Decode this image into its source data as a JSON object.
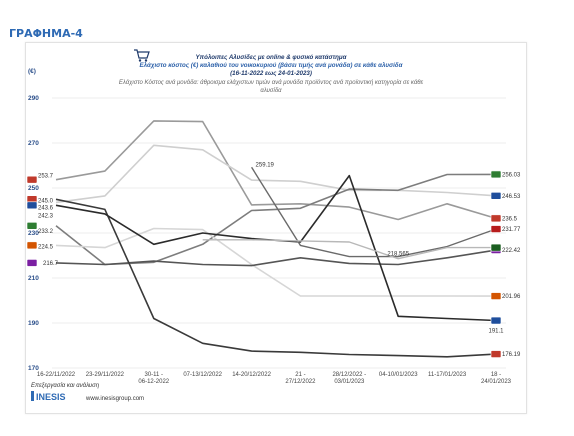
{
  "heading": "ΓΡΑΦΗΜΑ-4",
  "colors": {
    "heading": "#2e6ab4",
    "title": "#1f3a6b",
    "ytick": "#2a4e8a",
    "grid": "#e6e6e6"
  },
  "icon": "shopping-cart-icon",
  "chart_data": {
    "type": "line",
    "title_lines": [
      "Υπόλοιπες Αλυσίδες με online & φυσικό κατάστημα",
      "Ελάχιστο κόστος (€) καλαθιού του νοικοκυριού (βάσει τιμής ανά μονάδα) σε κάθε αλυσίδα",
      "(16-11-2022 εως 24-01-2023)"
    ],
    "subtitle_lines": [
      "Ελάχιστο Κόστος ανά μονάδα: άθροισμα ελάχιστων τιμών ανά μονάδα προϊόντος ανά προϊοντική κατηγορία σε κάθε",
      "αλυσίδα"
    ],
    "ylabel": "(€)",
    "ylim": [
      170,
      290
    ],
    "yticks": [
      170,
      190,
      210,
      230,
      250,
      270,
      290
    ],
    "categories": [
      "16-22/11/2022",
      "23-29/11/2022",
      "30-11 - 06-12-2022",
      "07-13/12/2022",
      "14-20/12/2022",
      "21 - 27/12/2022",
      "28/12/2022 - 03/01/2023",
      "04-10/01/2023",
      "11-17/01/2023",
      "18 - 24/01/2023"
    ],
    "grid": true,
    "series": [
      {
        "color": "#9a9a9a",
        "width": 1.6,
        "values": [
          253.7,
          257.5,
          279.8,
          279.5,
          242.5,
          243.0,
          241.5,
          236.0,
          243.0,
          236.5
        ]
      },
      {
        "color": "#cfcfcf",
        "width": 1.6,
        "values": [
          243.6,
          246.5,
          269.0,
          267.0,
          253.5,
          253.0,
          249.0,
          249.0,
          248.0,
          246.53
        ]
      },
      {
        "color": "#7d7d7d",
        "width": 1.6,
        "values": [
          233.2,
          216.0,
          217.0,
          225.0,
          240.0,
          241.0,
          249.5,
          249.0,
          256.0,
          256.03
        ]
      },
      {
        "color": "#d6d6d6",
        "width": 1.6,
        "values": [
          224.5,
          223.5,
          232.0,
          231.5,
          216.0,
          202.0,
          202.0,
          202.0,
          202.0,
          201.96
        ]
      },
      {
        "color": "#555555",
        "width": 1.6,
        "values": [
          216.7,
          216.0,
          217.5,
          216.0,
          215.5,
          219.0,
          216.5,
          216.0,
          219.0,
          222.42
        ]
      },
      {
        "color": "#3a3a3a",
        "width": 1.6,
        "values": [
          245.0,
          240.5,
          192.0,
          181.0,
          177.5,
          177.0,
          176.0,
          175.5,
          175.0,
          176.19
        ]
      },
      {
        "color": "#2b2b2b",
        "width": 1.6,
        "values": [
          242.3,
          238.5,
          225.0,
          230.0,
          227.5,
          226.0,
          255.5,
          193.0,
          192.0,
          191.1
        ]
      },
      {
        "color": "#6a6a6a",
        "width": 1.4,
        "values": [
          null,
          null,
          null,
          null,
          259.19,
          224.5,
          219.5,
          219.5,
          224.0,
          231.77
        ]
      },
      {
        "color": "#b8b8b8",
        "width": 1.4,
        "values": [
          null,
          null,
          null,
          227.0,
          227.0,
          226.5,
          226.0,
          218.565,
          223.5,
          223.5
        ]
      }
    ],
    "data_labels": [
      {
        "text": "253.7",
        "x": 0,
        "y": 253.7,
        "anchor": "start",
        "dx": 0,
        "dy": -2
      },
      {
        "text": "245.0",
        "x": 0,
        "y": 245.0,
        "anchor": "start",
        "dx": 0,
        "dy": 3
      },
      {
        "text": "243.6",
        "x": 0,
        "y": 243.6,
        "anchor": "start",
        "dx": 0,
        "dy": 7
      },
      {
        "text": "242.3",
        "x": 0,
        "y": 242.3,
        "anchor": "start",
        "dx": 0,
        "dy": 12
      },
      {
        "text": "233.2",
        "x": 0,
        "y": 233.2,
        "anchor": "start",
        "dx": 0,
        "dy": 7
      },
      {
        "text": "224.5",
        "x": 0,
        "y": 224.5,
        "anchor": "start",
        "dx": 0,
        "dy": 3
      },
      {
        "text": "216.7",
        "x": 0,
        "y": 216.7,
        "anchor": "start",
        "dx": 5,
        "dy": 2
      },
      {
        "text": "259.19",
        "x": 4,
        "y": 259.19,
        "anchor": "start",
        "dx": 4,
        "dy": -1
      },
      {
        "text": "218.565",
        "x": 7,
        "y": 218.565,
        "anchor": "middle",
        "dx": 0,
        "dy": -3
      },
      {
        "text": "256.03",
        "x": 9,
        "y": 256.03,
        "anchor": "start",
        "dx": 6,
        "dy": 2
      },
      {
        "text": "246.53",
        "x": 9,
        "y": 246.53,
        "anchor": "start",
        "dx": 6,
        "dy": 2
      },
      {
        "text": "236.5",
        "x": 9,
        "y": 236.5,
        "anchor": "start",
        "dx": 6,
        "dy": 2
      },
      {
        "text": "231.77",
        "x": 9,
        "y": 231.77,
        "anchor": "start",
        "dx": 6,
        "dy": 2
      },
      {
        "text": "222.42",
        "x": 9,
        "y": 222.42,
        "anchor": "start",
        "dx": 6,
        "dy": 2
      },
      {
        "text": "201.96",
        "x": 9,
        "y": 201.96,
        "anchor": "start",
        "dx": 6,
        "dy": 2
      },
      {
        "text": "191.1",
        "x": 9,
        "y": 191.1,
        "anchor": "middle",
        "dx": 0,
        "dy": 12
      },
      {
        "text": "176.19",
        "x": 9,
        "y": 176.19,
        "anchor": "start",
        "dx": 6,
        "dy": 2
      }
    ]
  },
  "footer": {
    "credit": "Επεξεργασία και ανάλυση",
    "brand": "INESIS",
    "website": "www.inesisgroup.com"
  }
}
